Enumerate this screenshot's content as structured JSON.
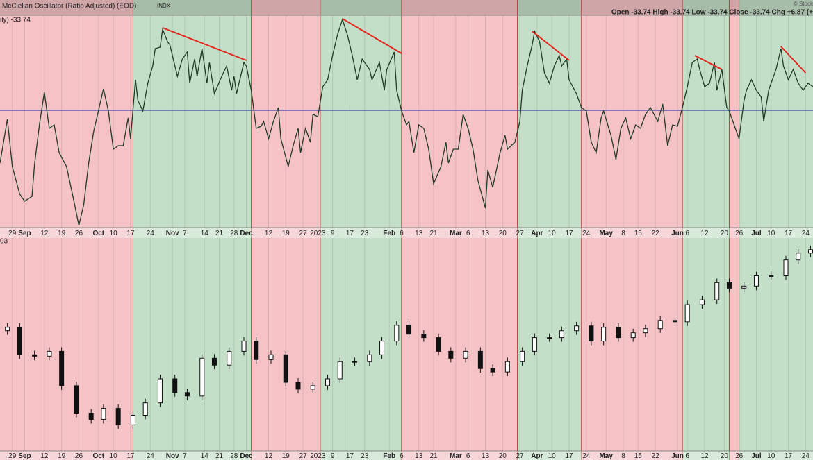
{
  "chart_data": [
    {
      "type": "line",
      "title": "McClellan Oscillator (Ratio Adjusted) (EOD)",
      "source": "INDX",
      "value_label": "ily) -33.74",
      "info": "Open -33.74  High -33.74  Low -33.74  Close -33.74  Chg +6.87 (+",
      "credit": "© Stock",
      "color": "#1f3a24",
      "x": [
        0,
        3,
        5,
        8,
        10,
        13,
        14,
        16,
        18,
        20,
        22,
        24,
        27,
        30,
        32,
        34,
        36,
        38,
        42,
        44,
        46,
        48,
        50,
        52,
        53,
        55,
        56,
        58,
        60,
        62,
        63,
        65,
        66,
        68,
        69,
        72,
        74,
        76,
        77,
        79,
        80,
        82,
        84,
        85,
        87,
        90,
        92,
        94,
        95,
        96,
        99,
        100,
        102,
        104,
        106,
        107,
        109,
        111,
        113,
        114,
        117,
        119,
        121,
        122,
        124,
        126,
        127,
        129,
        131,
        133,
        135,
        137,
        139,
        141,
        143,
        145,
        147,
        150,
        151,
        154,
        156,
        157,
        160,
        161,
        163,
        165,
        166,
        168,
        170,
        172,
        174,
        176,
        179,
        181,
        182,
        184,
        186,
        188,
        190,
        192,
        194,
        197,
        198,
        200,
        203,
        205,
        206,
        209,
        211,
        212,
        214,
        216,
        217,
        219,
        221,
        223,
        225,
        227,
        228,
        230,
        231,
        234,
        236,
        238,
        240,
        242,
        244,
        245,
        248,
        250,
        252,
        254,
        256,
        258,
        260,
        262,
        264,
        267,
        269,
        271,
        273,
        275,
        277,
        279,
        281,
        283,
        284,
        286,
        288,
        290,
        291,
        293,
        295,
        296,
        298,
        300,
        302,
        303,
        305,
        307,
        309,
        310,
        312,
        315,
        317,
        318,
        320,
        322,
        324,
        326,
        328,
        330
      ],
      "values": [
        -76,
        -13,
        -81,
        -121,
        -131,
        -124,
        -79,
        -21,
        26,
        -26,
        -21,
        -61,
        -81,
        -131,
        -166,
        -136,
        -76,
        -31,
        31,
        -1,
        -56,
        -51,
        -51,
        -11,
        -41,
        44,
        14,
        -1,
        39,
        64,
        89,
        91,
        117,
        99,
        94,
        49,
        74,
        84,
        39,
        74,
        49,
        89,
        39,
        69,
        24,
        49,
        64,
        29,
        49,
        24,
        69,
        64,
        29,
        -26,
        -23,
        -16,
        -41,
        -16,
        4,
        -41,
        -81,
        -51,
        -26,
        -61,
        -26,
        -46,
        -6,
        -9,
        34,
        44,
        79,
        109,
        131,
        109,
        79,
        44,
        74,
        59,
        44,
        69,
        29,
        59,
        84,
        29,
        -1,
        -21,
        -16,
        -61,
        -21,
        -26,
        -56,
        -106,
        -81,
        -46,
        -76,
        -56,
        -56,
        -6,
        -26,
        -56,
        -101,
        -141,
        -86,
        -111,
        -61,
        -36,
        -56,
        -46,
        -16,
        29,
        64,
        94,
        114,
        99,
        54,
        39,
        64,
        79,
        64,
        74,
        44,
        24,
        4,
        -1,
        -46,
        -61,
        -11,
        -1,
        -36,
        -71,
        -26,
        -11,
        -41,
        -21,
        -26,
        -6,
        4,
        -16,
        9,
        -51,
        -21,
        -23,
        4,
        34,
        69,
        74,
        59,
        34,
        39,
        69,
        29,
        59,
        4,
        -1,
        -21,
        -41,
        14,
        29,
        44,
        29,
        19,
        -16,
        29,
        59,
        89,
        64,
        44,
        59,
        39,
        29,
        39,
        34
      ],
      "xlim": [
        0,
        330
      ],
      "ylim": [
        -169,
        137
      ],
      "xticks": [
        {
          "value": 5,
          "label": "29"
        },
        {
          "value": 10,
          "label": "Sep"
        },
        {
          "value": 18,
          "label": "12"
        },
        {
          "value": 25,
          "label": "19"
        },
        {
          "value": 32,
          "label": "26"
        },
        {
          "value": 40,
          "label": "Oct"
        },
        {
          "value": 46,
          "label": "10"
        },
        {
          "value": 53,
          "label": "17"
        },
        {
          "value": 61,
          "label": "24"
        },
        {
          "value": 70,
          "label": "Nov"
        },
        {
          "value": 75,
          "label": "7"
        },
        {
          "value": 83,
          "label": "14"
        },
        {
          "value": 89,
          "label": "21"
        },
        {
          "value": 95,
          "label": "28"
        },
        {
          "value": 100,
          "label": "Dec"
        },
        {
          "value": 109,
          "label": "12"
        },
        {
          "value": 116,
          "label": "19"
        },
        {
          "value": 123,
          "label": "27"
        },
        {
          "value": 129,
          "label": "2023"
        },
        {
          "value": 135,
          "label": "9"
        },
        {
          "value": 142,
          "label": "17"
        },
        {
          "value": 148,
          "label": "23"
        },
        {
          "value": 158,
          "label": "Feb"
        },
        {
          "value": 163,
          "label": "6"
        },
        {
          "value": 170,
          "label": "13"
        },
        {
          "value": 176,
          "label": "21"
        },
        {
          "value": 185,
          "label": "Mar"
        },
        {
          "value": 190,
          "label": "6"
        },
        {
          "value": 197,
          "label": "13"
        },
        {
          "value": 204,
          "label": "20"
        },
        {
          "value": 211,
          "label": "27"
        },
        {
          "value": 218,
          "label": "Apr"
        },
        {
          "value": 224,
          "label": "10"
        },
        {
          "value": 231,
          "label": "17"
        },
        {
          "value": 238,
          "label": "24"
        },
        {
          "value": 246,
          "label": "May"
        },
        {
          "value": 253,
          "label": "8"
        },
        {
          "value": 259,
          "label": "15"
        },
        {
          "value": 266,
          "label": "22"
        },
        {
          "value": 275,
          "label": "Jun"
        },
        {
          "value": 279,
          "label": "6"
        },
        {
          "value": 286,
          "label": "12"
        },
        {
          "value": 294,
          "label": "20"
        },
        {
          "value": 300,
          "label": "26"
        },
        {
          "value": 307,
          "label": "Jul"
        },
        {
          "value": 313,
          "label": "10"
        },
        {
          "value": 320,
          "label": "17"
        },
        {
          "value": 327,
          "label": "24"
        }
      ],
      "grid": true,
      "reference_line": {
        "value": 0,
        "color": "#23238f"
      },
      "trend_color": "#e3261e",
      "trend_lines": [
        {
          "x": [
            66,
            100
          ],
          "y": [
            119,
            72
          ]
        },
        {
          "x": [
            139,
            163
          ],
          "y": [
            132,
            82
          ]
        },
        {
          "x": [
            216,
            231
          ],
          "y": [
            114,
            72
          ]
        },
        {
          "x": [
            282,
            293
          ],
          "y": [
            79,
            59
          ]
        },
        {
          "x": [
            317,
            327
          ],
          "y": [
            92,
            54
          ]
        }
      ],
      "regions": [
        {
          "start": 0,
          "end": 54,
          "color": "#f5c2c6"
        },
        {
          "start": 54,
          "end": 102,
          "color": "#c4dfc7"
        },
        {
          "start": 102,
          "end": 130,
          "color": "#f5c2c6"
        },
        {
          "start": 130,
          "end": 163,
          "color": "#c4dfc7"
        },
        {
          "start": 163,
          "end": 210,
          "color": "#f5c2c6"
        },
        {
          "start": 210,
          "end": 236,
          "color": "#c4dfc7"
        },
        {
          "start": 236,
          "end": 277,
          "color": "#f5c2c6"
        },
        {
          "start": 277,
          "end": 296,
          "color": "#c4dfc7"
        },
        {
          "start": 296,
          "end": 300,
          "color": "#f5c2c6"
        },
        {
          "start": 300,
          "end": 330,
          "color": "#c4dfc7"
        }
      ]
    },
    {
      "type": "candlestick",
      "title": "03",
      "x": [
        3,
        8,
        14,
        20,
        25,
        31,
        37,
        42,
        48,
        54,
        59,
        65,
        71,
        76,
        82,
        87,
        93,
        99,
        104,
        110,
        116,
        121,
        127,
        133,
        138,
        144,
        150,
        155,
        161,
        166,
        172,
        178,
        183,
        189,
        195,
        200,
        206,
        212,
        217,
        223,
        228,
        234,
        240,
        245,
        251,
        257,
        262,
        268,
        274,
        279,
        285,
        291,
        296,
        302,
        307,
        313,
        319,
        324,
        329
      ],
      "open": [
        175,
        180,
        140,
        138,
        145,
        95,
        55,
        46,
        62,
        38,
        52,
        70,
        105,
        85,
        80,
        135,
        125,
        145,
        160,
        133,
        140,
        100,
        90,
        95,
        105,
        130,
        130,
        140,
        160,
        183,
        170,
        165,
        145,
        135,
        145,
        120,
        115,
        130,
        145,
        165,
        165,
        175,
        182,
        160,
        180,
        165,
        172,
        178,
        190,
        188,
        213,
        220,
        245,
        237,
        240,
        255,
        255,
        278,
        288
      ],
      "high": [
        186,
        186,
        146,
        151,
        151,
        101,
        61,
        68,
        68,
        58,
        76,
        111,
        111,
        91,
        141,
        141,
        151,
        166,
        166,
        146,
        146,
        106,
        101,
        111,
        136,
        136,
        146,
        166,
        189,
        189,
        176,
        171,
        151,
        151,
        151,
        126,
        136,
        151,
        171,
        171,
        181,
        188,
        188,
        186,
        186,
        178,
        184,
        196,
        196,
        219,
        226,
        251,
        251,
        246,
        261,
        261,
        284,
        294,
        299
      ],
      "low": [
        169,
        134,
        132,
        132,
        89,
        49,
        40,
        40,
        32,
        32,
        46,
        64,
        79,
        74,
        74,
        119,
        119,
        139,
        127,
        127,
        94,
        84,
        84,
        89,
        99,
        124,
        124,
        134,
        154,
        164,
        159,
        139,
        129,
        129,
        114,
        109,
        109,
        124,
        139,
        159,
        159,
        169,
        154,
        154,
        159,
        159,
        166,
        172,
        182,
        182,
        207,
        214,
        231,
        231,
        234,
        249,
        249,
        272,
        282
      ],
      "close": [
        180,
        140,
        138,
        145,
        95,
        55,
        46,
        62,
        38,
        52,
        70,
        105,
        85,
        80,
        135,
        125,
        145,
        160,
        133,
        140,
        100,
        90,
        95,
        105,
        130,
        130,
        140,
        160,
        183,
        170,
        165,
        145,
        135,
        145,
        120,
        115,
        130,
        145,
        165,
        165,
        175,
        182,
        160,
        180,
        165,
        172,
        178,
        190,
        188,
        213,
        220,
        245,
        237,
        240,
        255,
        255,
        278,
        288,
        293
      ],
      "ylim": [
        0,
        310
      ],
      "up_color": "#ffffff",
      "down_color": "#111111"
    }
  ]
}
